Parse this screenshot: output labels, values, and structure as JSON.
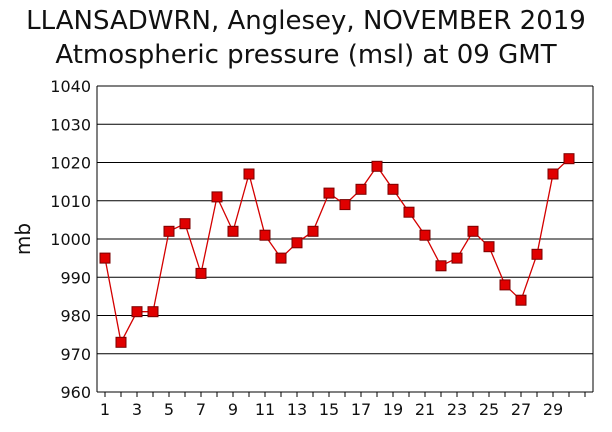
{
  "chart_data": {
    "type": "line",
    "title": "LLANSADWRN, Anglesey,  NOVEMBER 2019",
    "subtitle": "Atmospheric pressure  (msl) at 09 GMT",
    "xlabel": "",
    "ylabel": "mb",
    "xlim": [
      1,
      31
    ],
    "ylim": [
      960,
      1040
    ],
    "yticks": [
      960,
      970,
      980,
      990,
      1000,
      1010,
      1020,
      1030,
      1040
    ],
    "xticks": [
      1,
      3,
      5,
      7,
      9,
      11,
      13,
      15,
      17,
      19,
      21,
      23,
      25,
      27,
      29
    ],
    "grid": "horizontal",
    "series": [
      {
        "x": [
          1,
          2,
          3,
          4,
          5,
          6,
          7,
          8,
          9,
          10,
          11,
          12,
          13,
          14,
          15,
          16,
          17,
          18,
          19,
          20,
          21,
          22,
          23,
          24,
          25,
          26,
          27,
          28,
          29,
          30
        ],
        "values": [
          995,
          973,
          981,
          981,
          1002,
          1004,
          991,
          1011,
          1002,
          1017,
          1001,
          995,
          999,
          1002,
          1012,
          1009,
          1013,
          1019,
          1013,
          1007,
          1001,
          993,
          995,
          1002,
          998,
          988,
          984,
          996,
          1017,
          1021
        ]
      }
    ],
    "colors": {
      "line": "#d40000",
      "marker_fill": "#e00000",
      "marker_stroke": "#7a0000",
      "grid": "#000000"
    }
  }
}
